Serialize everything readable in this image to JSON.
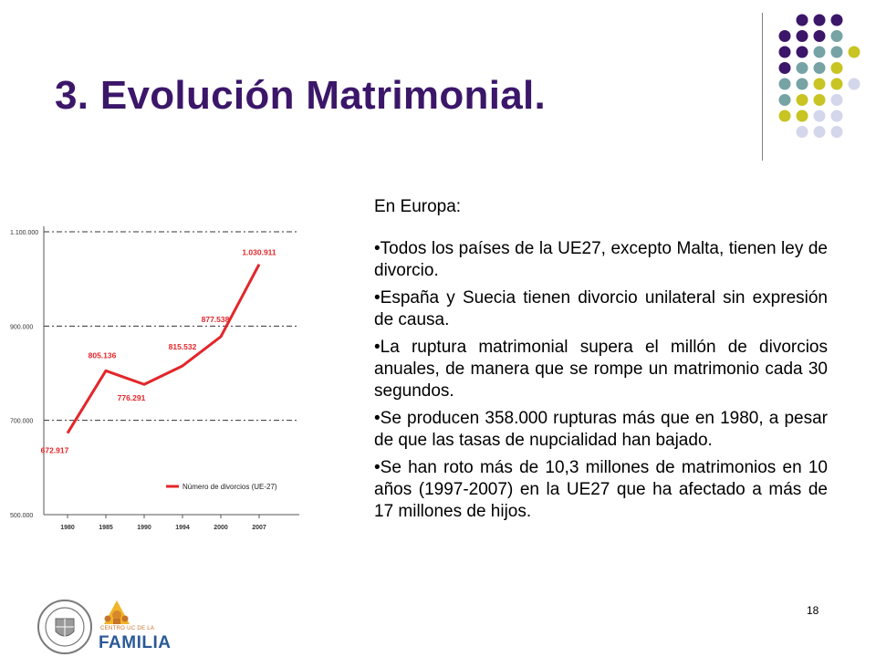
{
  "slide": {
    "title": "3. Evolución Matrimonial.",
    "page_number": "18"
  },
  "text": {
    "intro": "En Europa:",
    "bullets": [
      "Todos los países de la UE27, excepto Malta, tienen ley de divorcio.",
      "España y Suecia tienen divorcio unilateral sin expresión de causa.",
      "La ruptura matrimonial supera el millón de divorcios anuales, de manera que se rompe un matrimonio cada 30 segundos.",
      "Se producen 358.000 rupturas más que en 1980, a pesar de que las tasas de nupcialidad han bajado.",
      "Se han roto más de 10,3 millones de matrimonios en 10 años (1997-2007) en la UE27 que ha afectado a más de 17 millones de hijos."
    ]
  },
  "logos": {
    "familia_subtitle": "CENTRO UC DE LA",
    "familia_name": "FAMILIA"
  },
  "colors": {
    "title": "#3b1669",
    "series": "#e3262a",
    "dot_purple": "#3b1669",
    "dot_teal": "#77a3a5",
    "dot_olive": "#c8c423",
    "dot_lavender": "#d4d6ec"
  },
  "chart_data": {
    "type": "line",
    "categories": [
      "1980",
      "1985",
      "1990",
      "1994",
      "2000",
      "2007"
    ],
    "series": [
      {
        "name": "Número de divorcios (UE-27)",
        "values": [
          672917,
          805136,
          776291,
          815532,
          877538,
          1030911
        ]
      }
    ],
    "data_labels": [
      "672.917",
      "805.136",
      "776.291",
      "815.532",
      "877.538",
      "1.030.911"
    ],
    "yticks": [
      500000,
      700000,
      900000,
      1100000
    ],
    "ytick_labels": [
      "500.000",
      "700.000",
      "900.000",
      "1.100.000"
    ],
    "ylim": [
      500000,
      1100000
    ],
    "grid": true,
    "legend": "bottom-right",
    "title": "",
    "xlabel": "",
    "ylabel": ""
  }
}
